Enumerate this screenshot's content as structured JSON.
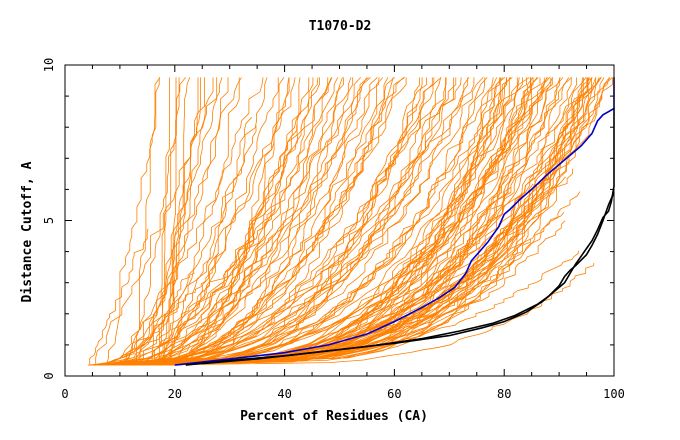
{
  "chart_data": {
    "type": "line",
    "title": "T1070-D2",
    "xlabel": "Percent of Residues (CA)",
    "ylabel": "Distance Cutoff, A",
    "xlim": [
      0,
      100
    ],
    "ylim": [
      0,
      10
    ],
    "x_ticks": [
      "0",
      "20",
      "40",
      "60",
      "80",
      "100"
    ],
    "y_ticks": [
      "0",
      "5",
      "10"
    ],
    "grid": false,
    "colors": {
      "background_models": "#ff8000",
      "highlight_blue": "#0000cc",
      "highlight_black": "#000000",
      "axes": "#000000"
    },
    "highlight_series": [
      {
        "color": "#0000cc",
        "x": [
          20,
          30,
          40,
          48,
          55,
          60,
          65,
          68,
          71,
          73,
          74,
          75,
          77,
          79,
          80,
          81,
          83,
          85,
          88,
          91,
          94,
          96,
          97,
          98,
          99,
          100,
          100
        ],
        "y": [
          0.35,
          0.55,
          0.75,
          1.0,
          1.35,
          1.75,
          2.2,
          2.5,
          2.85,
          3.3,
          3.7,
          3.9,
          4.3,
          4.8,
          5.2,
          5.35,
          5.7,
          6.0,
          6.5,
          6.95,
          7.4,
          7.8,
          8.2,
          8.4,
          8.5,
          8.6,
          9.6
        ]
      },
      {
        "color": "#000000",
        "x": [
          22,
          30,
          40,
          50,
          60,
          70,
          76,
          80,
          84,
          87,
          89,
          90,
          91,
          92,
          93,
          94,
          95,
          96,
          97,
          98,
          99,
          99.5,
          100,
          100
        ],
        "y": [
          0.35,
          0.5,
          0.65,
          0.85,
          1.05,
          1.3,
          1.55,
          1.75,
          2.05,
          2.4,
          2.7,
          2.85,
          3.0,
          3.3,
          3.6,
          3.85,
          4.1,
          4.35,
          4.7,
          5.1,
          5.3,
          5.6,
          6.1,
          8.6
        ]
      },
      {
        "color": "#000000",
        "x": [
          25,
          35,
          45,
          55,
          65,
          72,
          78,
          82,
          86,
          88,
          90,
          91,
          92,
          93,
          95,
          96,
          97,
          98,
          99,
          100
        ],
        "y": [
          0.4,
          0.55,
          0.75,
          0.95,
          1.2,
          1.45,
          1.7,
          1.95,
          2.3,
          2.55,
          2.9,
          3.2,
          3.4,
          3.55,
          3.9,
          4.2,
          4.55,
          5.0,
          5.5,
          5.9
        ]
      }
    ]
  }
}
